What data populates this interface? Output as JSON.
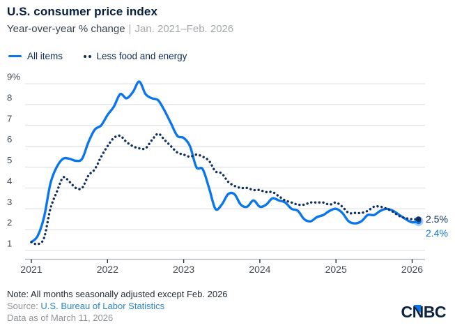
{
  "header": {
    "title": "U.S. consumer price index",
    "subtitle_main": "Year-over-year % change",
    "subtitle_sep": "|",
    "subtitle_range": "Jan. 2021–Feb. 2026"
  },
  "legend": {
    "all_items": "All items",
    "core": "Less food and energy"
  },
  "chart_data": {
    "type": "line",
    "title": "U.S. consumer price index",
    "subtitle": "Year-over-year % change | Jan. 2021–Feb. 2026",
    "xlabel": "",
    "ylabel": "Year-over-year % change",
    "x_unit": "month",
    "x_start": "2021-01",
    "x_end": "2026-02",
    "ylim": [
      1,
      9
    ],
    "grid": true,
    "legend_position": "top-left",
    "y_ticks": [
      "9%",
      "8",
      "7",
      "6",
      "5",
      "4",
      "3",
      "2",
      "1"
    ],
    "y_tick_values": [
      9,
      8,
      7,
      6,
      5,
      4,
      3,
      2,
      1
    ],
    "x_ticks": [
      {
        "label": "2021",
        "month_index": 0
      },
      {
        "label": "2022",
        "month_index": 12
      },
      {
        "label": "2023",
        "month_index": 24
      },
      {
        "label": "2024",
        "month_index": 36
      },
      {
        "label": "2025",
        "month_index": 48
      },
      {
        "label": "2026",
        "month_index": 60
      }
    ],
    "series": [
      {
        "name": "All items",
        "style": "solid",
        "color": "#0b76ec",
        "end_label": "2.4%",
        "values": [
          1.4,
          1.7,
          2.6,
          4.2,
          5.0,
          5.4,
          5.4,
          5.3,
          5.4,
          6.2,
          6.8,
          7.0,
          7.5,
          7.9,
          8.5,
          8.3,
          8.6,
          9.1,
          8.5,
          8.3,
          8.2,
          7.7,
          7.1,
          6.5,
          6.4,
          6.0,
          5.0,
          4.9,
          4.0,
          3.0,
          3.2,
          3.7,
          3.7,
          3.2,
          3.1,
          3.4,
          3.1,
          3.2,
          3.5,
          3.4,
          3.3,
          3.0,
          2.9,
          2.5,
          2.4,
          2.6,
          2.7,
          2.9,
          3.0,
          2.8,
          2.4,
          2.3,
          2.4,
          2.7,
          2.7,
          2.9,
          3.0,
          2.9,
          2.7,
          2.5,
          2.35,
          2.4
        ]
      },
      {
        "name": "Less food and energy",
        "style": "dotted",
        "color": "#0e2f5f",
        "end_label": "2.5%",
        "values": [
          1.4,
          1.3,
          1.6,
          3.0,
          3.8,
          4.5,
          4.3,
          4.0,
          4.0,
          4.6,
          4.9,
          5.5,
          6.0,
          6.4,
          6.5,
          6.2,
          6.0,
          5.9,
          5.9,
          6.3,
          6.6,
          6.3,
          6.0,
          5.7,
          5.6,
          5.5,
          5.6,
          5.5,
          5.3,
          4.8,
          4.7,
          4.3,
          4.1,
          4.0,
          4.0,
          3.9,
          3.9,
          3.8,
          3.8,
          3.6,
          3.4,
          3.3,
          3.2,
          3.2,
          3.3,
          3.3,
          3.3,
          3.2,
          3.3,
          3.1,
          2.8,
          2.8,
          2.8,
          2.9,
          3.1,
          3.1,
          3.0,
          2.85,
          2.65,
          2.55,
          2.5,
          2.5
        ]
      }
    ]
  },
  "footer": {
    "note": "Note: All months seasonally adjusted except Feb. 2026",
    "source_prefix": "Source: ",
    "source_link": "U.S. Bureau of Labor Statistics",
    "data_as_of": "Data as of March 11, 2026",
    "logo_letters": [
      "C",
      "N",
      "B",
      "C"
    ]
  },
  "colors": {
    "accent_blue": "#0b76ec",
    "dark_navy": "#0e2f5f",
    "grid": "#dbdcde",
    "axis_line": "#a9adb2",
    "tick": "#2c3238",
    "axis_text": "#414a52",
    "title": "#041e3d",
    "link_blue": "#2c86cc",
    "logo_navy": "#0a2240",
    "logo_triangle": "#0c73e6"
  }
}
